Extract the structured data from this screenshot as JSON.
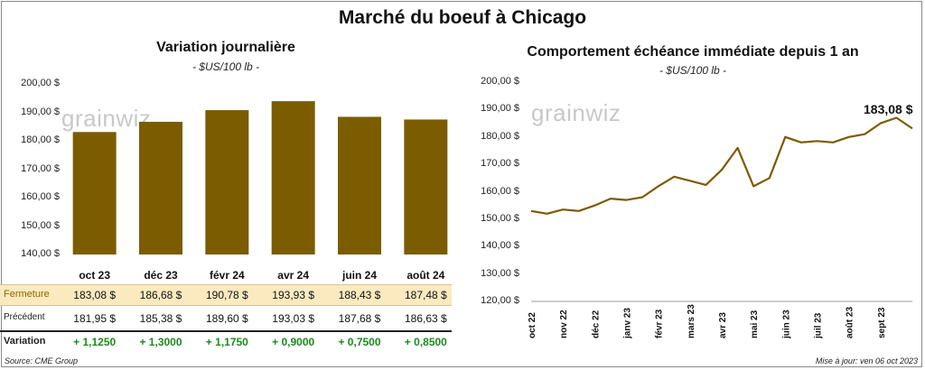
{
  "title": "Marché du boeuf à Chicago",
  "colors": {
    "bar": "#7b5c00",
    "line": "#7b5c00",
    "fermeture_bg": "#fbeac0",
    "positive": "#1d8a1d",
    "grid": "#dddddd"
  },
  "left": {
    "title": "Variation journalière",
    "unit": "- $US/100 lb -",
    "watermark": "grainwiz",
    "yticks": [
      "200,00 $",
      "190,00 $",
      "180,00 $",
      "170,00 $",
      "160,00 $",
      "150,00 $",
      "140,00 $"
    ],
    "table": {
      "fermeture_label": "Fermeture",
      "precedent_label": "Précédent",
      "variation_label": "Variation",
      "fermeture": [
        "183,08  $",
        "186,68  $",
        "190,78  $",
        "193,93  $",
        "188,43  $",
        "187,48  $"
      ],
      "precedent": [
        "181,95  $",
        "185,38  $",
        "189,60  $",
        "193,03  $",
        "187,68  $",
        "186,63  $"
      ],
      "variation": [
        "+ 1,1250",
        "+ 1,3000",
        "+ 1,1750",
        "+ 0,9000",
        "+ 0,7500",
        "+ 0,8500"
      ]
    }
  },
  "right": {
    "title": "Comportement  échéance immédiate depuis 1 an",
    "unit": "- $US/100 lb -",
    "watermark": "grainwiz",
    "last_label": "183,08 $",
    "yticks": [
      "200,00 $",
      "190,00 $",
      "180,00 $",
      "170,00 $",
      "160,00 $",
      "150,00 $",
      "140,00 $",
      "130,00 $",
      "120,00 $"
    ],
    "xticks": [
      "oct 22",
      "nov 22",
      "déc 22",
      "janv 23",
      "févr 23",
      "mars 23",
      "avr 23",
      "mai 23",
      "juin 23",
      "juil 23",
      "août 23",
      "sept 23"
    ]
  },
  "footer": {
    "source": "Source: CME Group",
    "update": "Mise à jour: ven 06 oct 2023"
  },
  "chart_data": [
    {
      "type": "bar",
      "title": "Variation journalière",
      "categories": [
        "oct 23",
        "déc 23",
        "févr 24",
        "avr 24",
        "juin 24",
        "août 24"
      ],
      "values": [
        183.08,
        186.68,
        190.78,
        193.93,
        188.43,
        187.48
      ],
      "ylim": [
        140,
        200
      ],
      "grid": false
    },
    {
      "type": "line",
      "title": "Comportement  échéance immédiate depuis 1 an",
      "x": [
        "oct 22",
        "oct 22",
        "nov 22",
        "nov 22",
        "déc 22",
        "déc 22",
        "janv 23",
        "janv 23",
        "févr 23",
        "févr 23",
        "mars 23",
        "mars 23",
        "avr 23",
        "avr 23",
        "mai 23",
        "mai 23",
        "juin 23",
        "juin 23",
        "juil 23",
        "juil 23",
        "août 23",
        "août 23",
        "sept 23",
        "sept 23",
        "oct 23"
      ],
      "series": [
        {
          "values": [
            153,
            152,
            153.5,
            153,
            155,
            157.5,
            157,
            158,
            162,
            165.5,
            164,
            162.5,
            168,
            176,
            162,
            165,
            180,
            178,
            178.5,
            178,
            180,
            181,
            185,
            187,
            183.08
          ]
        }
      ],
      "ylim": [
        120,
        200
      ],
      "grid": false
    }
  ]
}
